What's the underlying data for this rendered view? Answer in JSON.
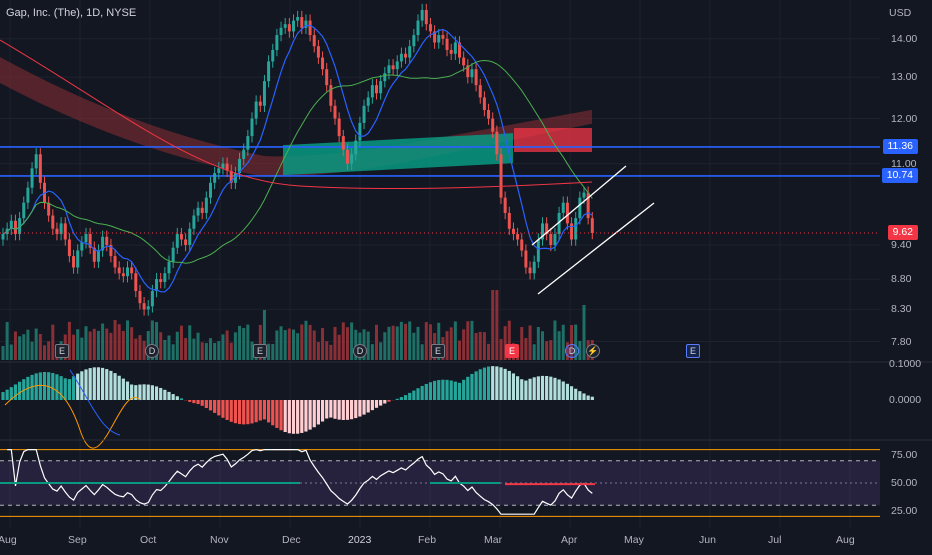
{
  "header": {
    "title": "Gap, Inc. (The), 1D, NYSE"
  },
  "axis": {
    "currency": "USD"
  },
  "colors": {
    "background": "#131722",
    "up": "#26a69a",
    "down": "#ef5350",
    "hline": "#2962ff",
    "rsi_band": "#7e57c2",
    "last_price": "#f23645"
  },
  "chart_data": [
    {
      "type": "candlestick",
      "panel": "price",
      "y_scale": "log",
      "y_ticks": [
        "14.00",
        "13.00",
        "12.00",
        "11.00",
        "9.40",
        "8.80",
        "8.30",
        "7.80"
      ],
      "x_ticks": [
        "Aug",
        "Sep",
        "Oct",
        "Nov",
        "Dec",
        "2023",
        "Feb",
        "Mar",
        "Apr",
        "May",
        "Jun",
        "Jul",
        "Aug"
      ],
      "horizontal_levels": [
        {
          "label": "11.36",
          "value": 11.36
        },
        {
          "label": "10.74",
          "value": 10.74
        }
      ],
      "last_price": {
        "label": "9.62",
        "value": 9.62
      },
      "close": [
        9.6,
        9.7,
        9.85,
        9.6,
        9.9,
        10.2,
        10.5,
        10.9,
        11.2,
        10.6,
        10.2,
        9.95,
        9.7,
        9.6,
        9.8,
        9.5,
        9.2,
        9.0,
        9.3,
        9.45,
        9.6,
        9.35,
        9.1,
        9.3,
        9.55,
        9.4,
        9.2,
        9.0,
        8.9,
        8.85,
        9.0,
        8.9,
        8.6,
        8.4,
        8.3,
        8.35,
        8.6,
        8.8,
        8.75,
        8.9,
        9.1,
        9.35,
        9.6,
        9.5,
        9.4,
        9.7,
        9.95,
        10.1,
        10.0,
        10.3,
        10.6,
        10.8,
        10.9,
        11.0,
        10.85,
        10.6,
        10.8,
        11.1,
        11.3,
        11.6,
        12.0,
        12.4,
        12.3,
        12.9,
        13.4,
        13.7,
        14.1,
        14.3,
        14.4,
        14.2,
        14.5,
        14.6,
        14.3,
        14.5,
        14.1,
        13.8,
        13.5,
        13.2,
        12.8,
        12.3,
        12.0,
        11.6,
        11.3,
        11.0,
        11.2,
        11.5,
        11.9,
        12.3,
        12.5,
        12.8,
        12.6,
        12.9,
        13.1,
        13.3,
        13.2,
        13.4,
        13.6,
        13.5,
        13.8,
        14.1,
        14.5,
        14.8,
        14.4,
        14.2,
        13.9,
        14.1,
        14.0,
        13.7,
        13.6,
        13.9,
        13.5,
        13.3,
        13.0,
        13.2,
        12.8,
        12.5,
        12.2,
        12.0,
        11.7,
        11.2,
        10.3,
        10.0,
        9.7,
        9.6,
        9.5,
        9.3,
        9.0,
        8.9,
        9.1,
        9.5,
        9.8,
        9.6,
        9.4,
        9.6,
        10.0,
        10.2,
        9.8,
        9.5,
        9.9,
        10.3,
        10.4,
        9.9,
        9.62
      ],
      "ma_fast": "blue line",
      "ma_slow": "green line",
      "ribbon": "red/green cloud band"
    },
    {
      "type": "bar",
      "panel": "volume",
      "series": [
        {
          "name": "Volume"
        }
      ]
    },
    {
      "type": "bar",
      "panel": "oscillator",
      "y_ticks": [
        "0.1000",
        "0.0000"
      ]
    },
    {
      "type": "line",
      "panel": "rsi",
      "y_ticks": [
        "75.00",
        "50.00",
        "25.00"
      ],
      "ylim": [
        15,
        85
      ]
    }
  ],
  "markers": {
    "earnings": "E",
    "dividend": "D",
    "split": "⚡"
  }
}
